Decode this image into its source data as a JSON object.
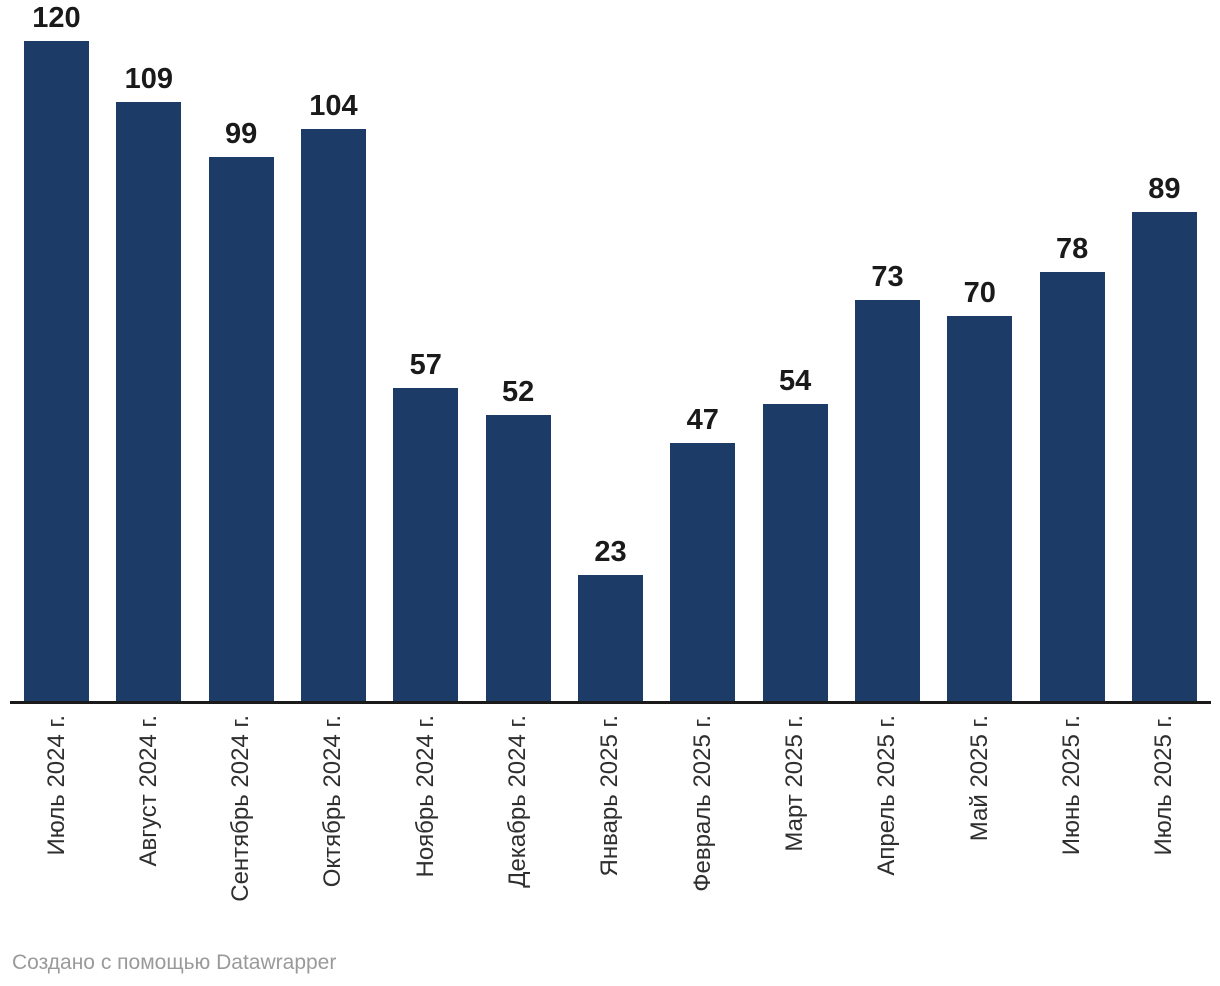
{
  "chart_data": {
    "type": "bar",
    "categories": [
      "Июль 2024 г.",
      "Август 2024 г.",
      "Сентябрь 2024 г.",
      "Октябрь 2024 г.",
      "Ноябрь 2024 г.",
      "Декабрь 2024 г.",
      "Январь 2025 г.",
      "Февраль 2025 г.",
      "Март 2025 г.",
      "Апрель 2025 г.",
      "Май 2025 г.",
      "Июнь 2025 г.",
      "Июль 2025 г."
    ],
    "values": [
      120,
      109,
      99,
      104,
      57,
      52,
      23,
      47,
      54,
      73,
      70,
      78,
      89
    ],
    "title": "",
    "xlabel": "",
    "ylabel": "",
    "ylim": [
      0,
      120
    ],
    "grid": false,
    "legend": "none",
    "value_labels_shown": true,
    "category_labels_rotation_deg": -90
  },
  "theme": {
    "bar_color": "#1c3b67",
    "value_label_color": "#1a1a1a",
    "category_label_color": "#2f2f2f",
    "axis_color": "#1a1a1a",
    "background": "#ffffff",
    "footer_color": "#9a9a9a"
  },
  "footer": {
    "attribution": "Создано с помощью Datawrapper"
  }
}
